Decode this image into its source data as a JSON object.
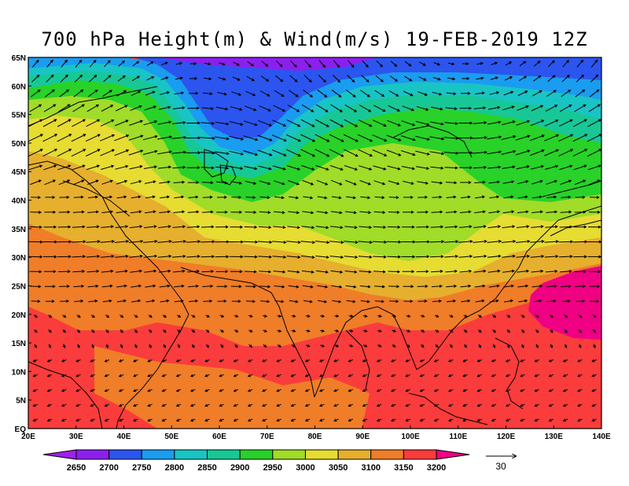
{
  "title": "700 hPa Height(m) & Wind(m/s) 19-FEB-2019 12Z",
  "map": {
    "lon_range": [
      20,
      140
    ],
    "lat_range": [
      0,
      65
    ],
    "lon_ticks": [
      "20E",
      "30E",
      "40E",
      "50E",
      "60E",
      "70E",
      "80E",
      "90E",
      "100E",
      "110E",
      "120E",
      "130E",
      "140E"
    ],
    "lat_ticks": [
      "EQ",
      "5N",
      "10N",
      "15N",
      "20N",
      "25N",
      "30N",
      "35N",
      "40N",
      "45N",
      "50N",
      "55N",
      "60N",
      "65N"
    ]
  },
  "colorbar": {
    "levels": [
      "2650",
      "2700",
      "2750",
      "2800",
      "2850",
      "2900",
      "2950",
      "3000",
      "3050",
      "3100",
      "3150",
      "3200"
    ],
    "colors": [
      "#a020f0",
      "#8c1fee",
      "#2b55ee",
      "#1a9cf0",
      "#19c4c4",
      "#17c896",
      "#28d228",
      "#a0dc28",
      "#e6dc32",
      "#e6af2d",
      "#f07d28",
      "#fa3c3c",
      "#f00082"
    ]
  },
  "wind_reference": {
    "label": "30"
  }
}
